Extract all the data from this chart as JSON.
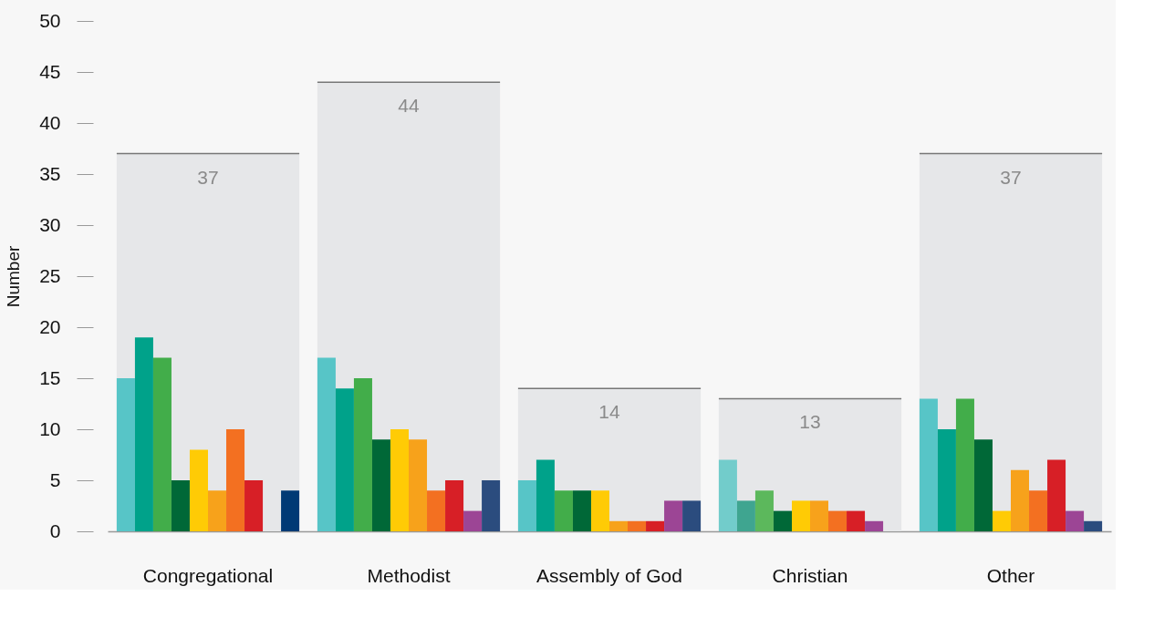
{
  "chart_data": {
    "type": "bar",
    "ylabel": "Number",
    "categories": [
      "Congregational",
      "Methodist",
      "Assembly of God",
      "Christian",
      "Other"
    ],
    "ylim": [
      0,
      50
    ],
    "yticks": [
      0,
      5,
      10,
      15,
      20,
      25,
      30,
      35,
      40,
      45,
      50
    ],
    "grid": false,
    "series": [
      {
        "color": "#e6e7e9",
        "values": [
          37,
          44,
          14,
          13,
          37
        ],
        "value_labels": [
          "37",
          "44",
          "14",
          "13",
          "37"
        ]
      },
      {
        "colors": [
          "#57c5c7",
          "#57c5c7",
          "#57c5c7",
          "#72cccb",
          "#57c5c7"
        ],
        "values": [
          15,
          17,
          5,
          7,
          13
        ]
      },
      {
        "colors": [
          "#00a28a",
          "#00a28a",
          "#00a28a",
          "#3fa590",
          "#00a28a"
        ],
        "values": [
          19,
          14,
          7,
          3,
          10
        ]
      },
      {
        "colors": [
          "#42ad4a",
          "#42ad4a",
          "#42ad4a",
          "#5cb85c",
          "#42ad4a"
        ],
        "values": [
          17,
          15,
          4,
          4,
          13
        ]
      },
      {
        "color": "#006837",
        "values": [
          5,
          9,
          4,
          2,
          9
        ]
      },
      {
        "color": "#ffcb05",
        "values": [
          8,
          10,
          4,
          3,
          2
        ]
      },
      {
        "color": "#f7a21b",
        "values": [
          4,
          9,
          1,
          3,
          6
        ]
      },
      {
        "color": "#f37021",
        "values": [
          10,
          4,
          1,
          2,
          4
        ]
      },
      {
        "color": "#d71f26",
        "values": [
          5,
          5,
          1,
          2,
          7
        ]
      },
      {
        "color": "#9c4595",
        "values": [
          null,
          2,
          3,
          1,
          2
        ]
      },
      {
        "colors": [
          "#003a75",
          "#2b4c7e",
          "#2b4c7e",
          "#2b4c7e",
          "#2b4c7e"
        ],
        "values": [
          4,
          5,
          3,
          null,
          1
        ]
      }
    ]
  }
}
